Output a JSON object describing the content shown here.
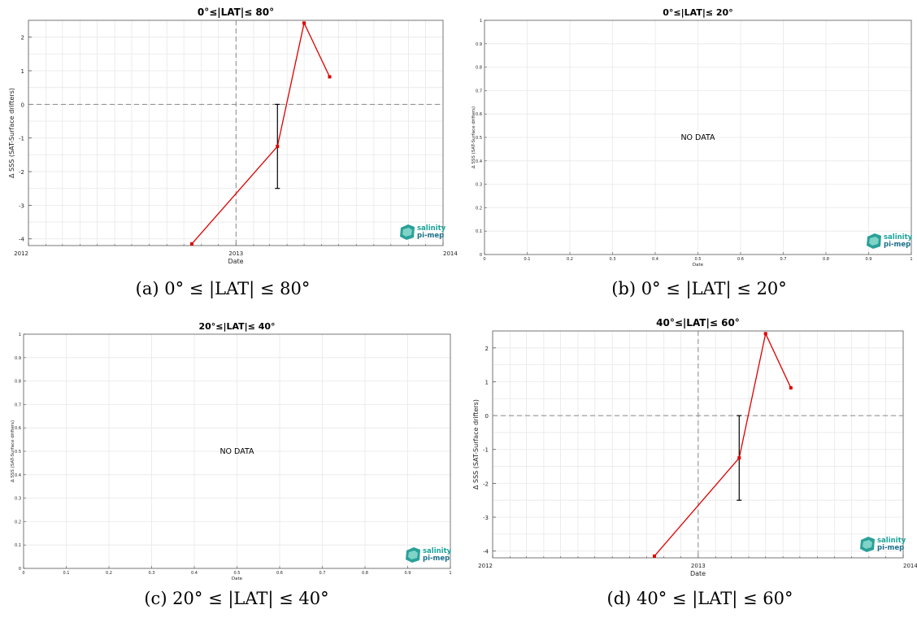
{
  "logo": {
    "line1": "salinity",
    "line2": "pi-mep"
  },
  "chart_data": [
    {
      "type": "line",
      "title": "0°≤|LAT|≤ 80°",
      "caption": "(a) 0° ≤ |LAT| ≤ 80°",
      "xlabel": "Date",
      "ylabel": "Δ SSS (SAT-Surface drifters)",
      "x_axis": "date",
      "xlim": [
        "2012-01-01",
        "2014-01-01"
      ],
      "xticks": [
        "2012",
        "2013",
        "2014"
      ],
      "ylim": [
        -4.2,
        2.5
      ],
      "yticks": [
        -4,
        -3,
        -2,
        -1,
        0,
        1,
        2
      ],
      "grid": true,
      "reference_lines": {
        "x": "2013-01-01",
        "y": 0
      },
      "series": [
        {
          "x": [
            "2012-10-15",
            "2013-03-15",
            "2013-05-01",
            "2013-06-15"
          ],
          "y": [
            -4.15,
            -1.25,
            2.42,
            0.82
          ],
          "color": "#e00000"
        }
      ],
      "error_bars": [
        {
          "x": "2013-03-15",
          "y": -1.25,
          "low": -2.5,
          "high": 0.0
        }
      ],
      "no_data": false
    },
    {
      "type": "line",
      "title": "0°≤|LAT|≤ 20°",
      "caption": "(b) 0° ≤ |LAT| ≤ 20°",
      "xlabel": "Date",
      "ylabel": "Δ SSS (SAT-Surface drifters)",
      "xlim": [
        0,
        1
      ],
      "ylim": [
        0,
        1
      ],
      "ticks": [
        "0",
        "0.1",
        "0.2",
        "0.3",
        "0.4",
        "0.5",
        "0.6",
        "0.7",
        "0.8",
        "0.9",
        "1"
      ],
      "grid": true,
      "no_data": true,
      "no_data_text": "NO DATA"
    },
    {
      "type": "line",
      "title": "20°≤|LAT|≤ 40°",
      "caption": "(c) 20° ≤ |LAT| ≤ 40°",
      "xlabel": "Date",
      "ylabel": "Δ SSS (SAT-Surface drifters)",
      "xlim": [
        0,
        1
      ],
      "ylim": [
        0,
        1
      ],
      "ticks": [
        "0",
        "0.1",
        "0.2",
        "0.3",
        "0.4",
        "0.5",
        "0.6",
        "0.7",
        "0.8",
        "0.9",
        "1"
      ],
      "grid": true,
      "no_data": true,
      "no_data_text": "NO DATA"
    },
    {
      "type": "line",
      "title": "40°≤|LAT|≤ 60°",
      "caption": "(d) 40° ≤ |LAT| ≤ 60°",
      "xlabel": "Date",
      "ylabel": "Δ SSS (SAT-Surface drifters)",
      "x_axis": "date",
      "xlim": [
        "2012-01-01",
        "2014-01-01"
      ],
      "xticks": [
        "2012",
        "2013",
        "2014"
      ],
      "ylim": [
        -4.2,
        2.5
      ],
      "yticks": [
        -4,
        -3,
        -2,
        -1,
        0,
        1,
        2
      ],
      "grid": true,
      "reference_lines": {
        "x": "2013-01-01",
        "y": 0
      },
      "series": [
        {
          "x": [
            "2012-10-15",
            "2013-03-15",
            "2013-05-01",
            "2013-06-15"
          ],
          "y": [
            -4.15,
            -1.25,
            2.42,
            0.82
          ],
          "color": "#e00000"
        }
      ],
      "error_bars": [
        {
          "x": "2013-03-15",
          "y": -1.25,
          "low": -2.5,
          "high": 0.0
        }
      ],
      "no_data": false
    }
  ]
}
